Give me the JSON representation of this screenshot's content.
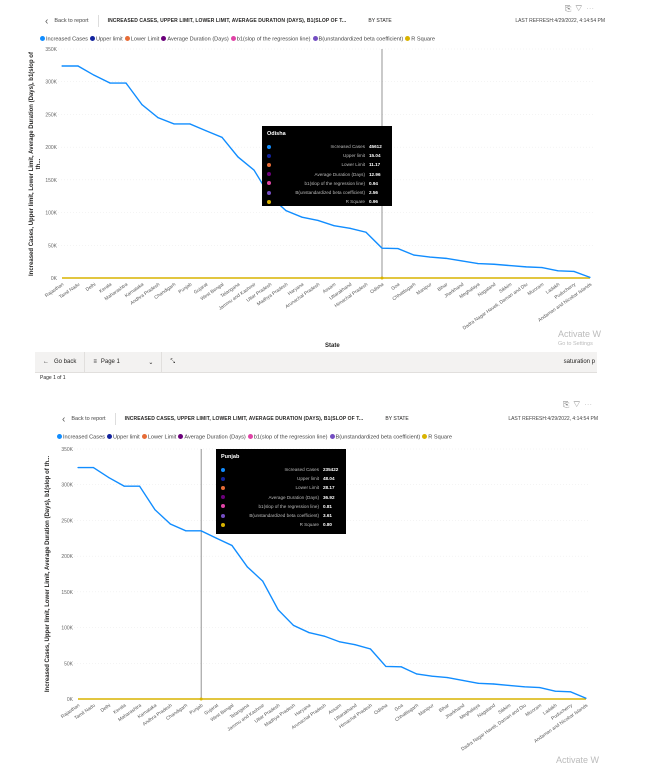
{
  "header": {
    "back_label": "Back to report",
    "title": "INCREASED CASES, UPPER LIMIT, LOWER LIMIT, AVERAGE DURATION (DAYS), B1(SLOP OF T...",
    "by": "BY STATE",
    "last_refresh": "LAST REFRESH:4/29/2022, 4:14:54 PM",
    "icons": [
      "copy-icon",
      "filter-icon",
      "more-icon"
    ]
  },
  "legend": [
    {
      "label": "Increased Cases",
      "color": "#118DFF"
    },
    {
      "label": "Upper limit",
      "color": "#12239E"
    },
    {
      "label": "Lower Limit",
      "color": "#E66C37"
    },
    {
      "label": "Average Duration (Days)",
      "color": "#6B007B"
    },
    {
      "label": "b1(slop of the regression line)",
      "color": "#E044A7"
    },
    {
      "label": "B(unstandardized beta coefficient)",
      "color": "#744EC2"
    },
    {
      "label": "R Square",
      "color": "#D9B300"
    }
  ],
  "chart_data": {
    "type": "line",
    "title": "",
    "xlabel": "State",
    "ylabel": "Increased Cases, Upper limit, Lower Limit, Average Duration (Days), b1(slop of th...",
    "ylim": [
      0,
      350000
    ],
    "yticks": [
      "0K",
      "50K",
      "100K",
      "150K",
      "200K",
      "250K",
      "300K",
      "350K"
    ],
    "categories": [
      "Rajasthan",
      "Tamil Nadu",
      "Delhi",
      "Kerala",
      "Maharashtra",
      "Karnataka",
      "Andhra Pradesh",
      "Chandigarh",
      "Punjab",
      "Gujarat",
      "West Bengal",
      "Telangana",
      "Jammu and Kashmir",
      "Uttar Pradesh",
      "Madhya Pradesh",
      "Haryana",
      "Arunachal Pradesh",
      "Assam",
      "Uttarakhand",
      "Himachal Pradesh",
      "Odisha",
      "Goa",
      "Chhattisgarh",
      "Manipur",
      "Bihar",
      "Jharkhand",
      "Meghalaya",
      "Nagaland",
      "Sikkim",
      "Dadra Nagar Haveli, Daman and Diu",
      "Mizoram",
      "Ladakh",
      "Puducherry",
      "Andaman and Nicobar Islands"
    ],
    "series": [
      {
        "name": "Increased Cases",
        "color": "#118DFF",
        "values": [
          324000,
          324000,
          310000,
          298000,
          298000,
          265000,
          245000,
          235500,
          235422,
          225000,
          215000,
          185000,
          165000,
          125000,
          103000,
          93000,
          88000,
          80000,
          76000,
          70000,
          45612,
          45000,
          35000,
          32000,
          30000,
          26000,
          22000,
          21000,
          19000,
          17000,
          16000,
          11000,
          10000,
          1000
        ]
      },
      {
        "name": "R Square",
        "color": "#D9B300",
        "values": [
          0,
          0,
          0,
          0,
          0,
          0,
          0,
          0,
          0.8,
          0,
          0,
          0,
          0,
          0,
          0,
          0,
          0,
          0,
          0,
          0,
          0.96,
          0,
          0,
          0,
          0,
          0,
          0,
          0,
          0,
          0,
          0,
          0,
          0,
          0
        ]
      }
    ],
    "grid": true,
    "legend_position": "top-left"
  },
  "tooltips": [
    {
      "state": "Odisha",
      "rows": [
        {
          "label": "Increased Cases",
          "value": "45612",
          "color": "#118DFF"
        },
        {
          "label": "Upper limit",
          "value": "15.04",
          "color": "#12239E"
        },
        {
          "label": "Lower Limit",
          "value": "11.17",
          "color": "#E66C37"
        },
        {
          "label": "Average Duration (Days)",
          "value": "12.96",
          "color": "#6B007B"
        },
        {
          "label": "b1(slop of the regression line)",
          "value": "0.94",
          "color": "#E044A7"
        },
        {
          "label": "B(unstandardized beta coefficient)",
          "value": "2.56",
          "color": "#744EC2"
        },
        {
          "label": "R Square",
          "value": "0.96",
          "color": "#D9B300"
        }
      ]
    },
    {
      "state": "Punjab",
      "rows": [
        {
          "label": "Increased Cases",
          "value": "235422",
          "color": "#118DFF"
        },
        {
          "label": "Upper limit",
          "value": "48.04",
          "color": "#12239E"
        },
        {
          "label": "Lower Limit",
          "value": "28.17",
          "color": "#E66C37"
        },
        {
          "label": "Average Duration (Days)",
          "value": "36.92",
          "color": "#6B007B"
        },
        {
          "label": "b1(slop of the regression line)",
          "value": "0.81",
          "color": "#E044A7"
        },
        {
          "label": "B(unstandardized beta coefficient)",
          "value": "3.61",
          "color": "#744EC2"
        },
        {
          "label": "R Square",
          "value": "0.80",
          "color": "#D9B300"
        }
      ]
    }
  ],
  "bottom_bar": {
    "go_back": "Go back",
    "page": "Page 1",
    "right_text": "saturation p",
    "page_of": "Page 1 of 1"
  },
  "watermark": {
    "line1": "Activate W",
    "line2": "Go to Settings"
  }
}
